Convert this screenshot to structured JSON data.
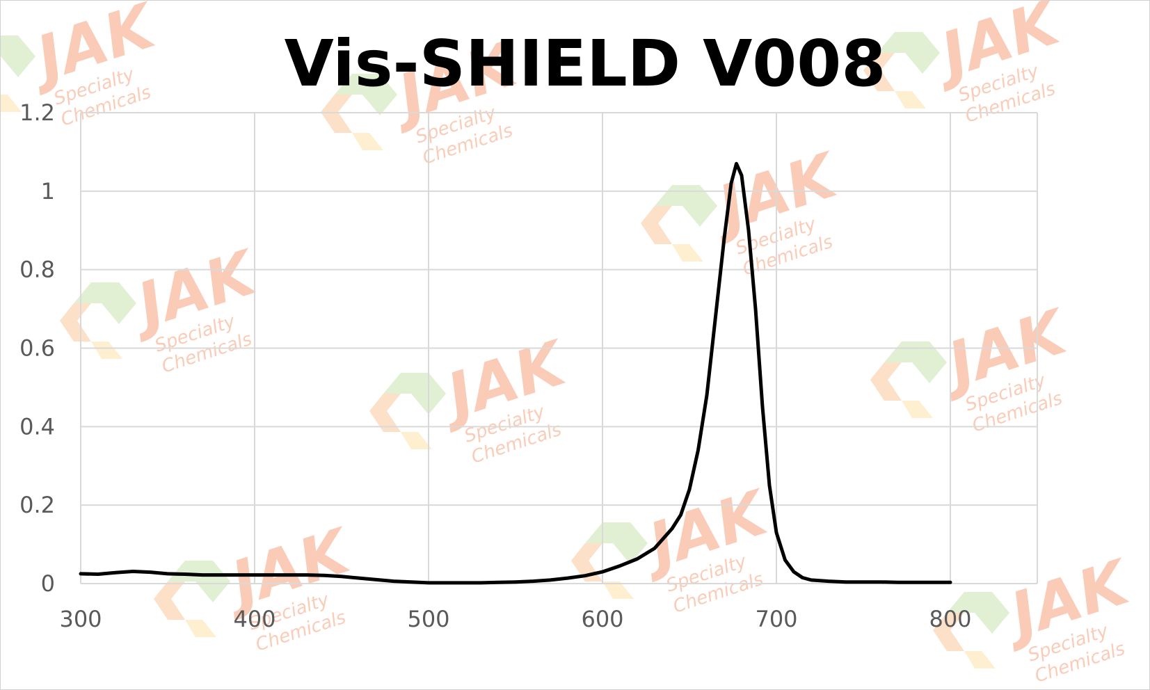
{
  "chart_data": {
    "type": "line",
    "title": "Vis-SHIELD V008",
    "xlabel": "",
    "ylabel": "",
    "xlim": [
      300,
      800
    ],
    "ylim": [
      0,
      1.2
    ],
    "x_ticks": [
      "300",
      "400",
      "500",
      "600",
      "700",
      "800"
    ],
    "y_ticks": [
      "0",
      "0.2",
      "0.4",
      "0.6",
      "0.8",
      "1",
      "1.2"
    ],
    "grid": true,
    "legend": "none",
    "series": [
      {
        "color": "#000000",
        "points": [
          [
            300,
            0.025
          ],
          [
            310,
            0.024
          ],
          [
            320,
            0.028
          ],
          [
            330,
            0.031
          ],
          [
            340,
            0.029
          ],
          [
            350,
            0.025
          ],
          [
            360,
            0.024
          ],
          [
            370,
            0.022
          ],
          [
            380,
            0.022
          ],
          [
            390,
            0.022
          ],
          [
            400,
            0.022
          ],
          [
            410,
            0.022
          ],
          [
            420,
            0.022
          ],
          [
            430,
            0.022
          ],
          [
            440,
            0.021
          ],
          [
            450,
            0.018
          ],
          [
            460,
            0.014
          ],
          [
            470,
            0.01
          ],
          [
            480,
            0.006
          ],
          [
            490,
            0.004
          ],
          [
            500,
            0.002
          ],
          [
            510,
            0.002
          ],
          [
            520,
            0.002
          ],
          [
            530,
            0.002
          ],
          [
            540,
            0.003
          ],
          [
            550,
            0.004
          ],
          [
            560,
            0.006
          ],
          [
            570,
            0.009
          ],
          [
            580,
            0.014
          ],
          [
            590,
            0.02
          ],
          [
            600,
            0.03
          ],
          [
            610,
            0.045
          ],
          [
            620,
            0.063
          ],
          [
            630,
            0.09
          ],
          [
            640,
            0.14
          ],
          [
            645,
            0.175
          ],
          [
            650,
            0.24
          ],
          [
            655,
            0.34
          ],
          [
            660,
            0.48
          ],
          [
            665,
            0.68
          ],
          [
            670,
            0.88
          ],
          [
            674,
            1.02
          ],
          [
            677,
            1.07
          ],
          [
            680,
            1.04
          ],
          [
            684,
            0.9
          ],
          [
            688,
            0.7
          ],
          [
            692,
            0.45
          ],
          [
            696,
            0.25
          ],
          [
            700,
            0.13
          ],
          [
            705,
            0.06
          ],
          [
            710,
            0.03
          ],
          [
            715,
            0.015
          ],
          [
            720,
            0.009
          ],
          [
            730,
            0.006
          ],
          [
            740,
            0.004
          ],
          [
            750,
            0.004
          ],
          [
            760,
            0.004
          ],
          [
            770,
            0.003
          ],
          [
            780,
            0.003
          ],
          [
            790,
            0.003
          ],
          [
            800,
            0.003
          ]
        ]
      }
    ]
  },
  "watermark": {
    "brand": "JAK",
    "line1": "Specialty",
    "line2": "Chemicals",
    "colors": {
      "text": "#f6a47f",
      "hex_orange": "#fbc79a",
      "hex_yellow": "#fde3a8",
      "hex_green": "#c9e3b0"
    }
  }
}
